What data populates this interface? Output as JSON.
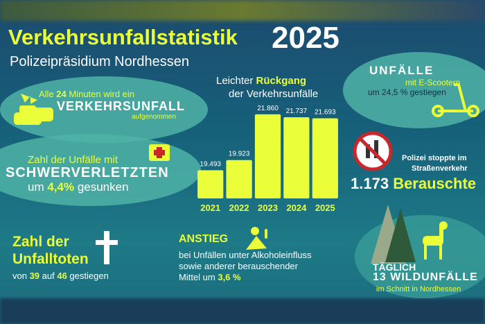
{
  "header": {
    "title": "Verkehrsunfallstatistik",
    "year": "2025",
    "subtitle": "Polizeipräsidium Nordhessen"
  },
  "accidents": {
    "line1": [
      "Alle ",
      "24",
      " Minuten wird ein"
    ],
    "headline": "VERKEHRSUNFALL",
    "line3": "aufgenommen"
  },
  "injured": {
    "line1": "Zahl der Unfälle mit",
    "headline": "SCHWERVERLETZTEN",
    "line3": [
      "um ",
      "4,4%",
      " gesunken"
    ]
  },
  "fatalities": {
    "headline": "Zahl der Unfalltoten",
    "line2": [
      "von ",
      "39",
      " auf ",
      "46",
      " gestiegen"
    ]
  },
  "chart_data": {
    "type": "bar",
    "title": [
      "Leichter ",
      "Rückgang"
    ],
    "subtitle": "der Verkehrsunfälle",
    "categories": [
      "2021",
      "2022",
      "2023",
      "2024",
      "2025"
    ],
    "values": [
      19493,
      19923,
      21860,
      21737,
      21693
    ],
    "value_labels": [
      "19.493",
      "19.923",
      "21.860",
      "21.737",
      "21.693"
    ],
    "color": "#eaff3a",
    "ylim": [
      18300,
      22000
    ]
  },
  "alcohol": {
    "headline": "ANSTIEG",
    "line1": "bei Unfällen unter Alkoholeinfluss",
    "line2": "sowie anderer berauschender",
    "line3": [
      "Mittel um ",
      "3,6 %"
    ]
  },
  "scooter": {
    "headline": "UNFÄLLE",
    "line2": "mit E-Scootern",
    "line3": "um 24,5 % gestiegen"
  },
  "intoxicated": {
    "line1": "Polizei stoppte im",
    "line2": "Straßenverkehr",
    "count": "1.173",
    "label": "Berauschte"
  },
  "wildlife": {
    "line1": "TÄGLICH",
    "line2": [
      "13",
      " WILDUNFÄLLE"
    ],
    "line3": "im Schnitt in Nordhessen"
  }
}
